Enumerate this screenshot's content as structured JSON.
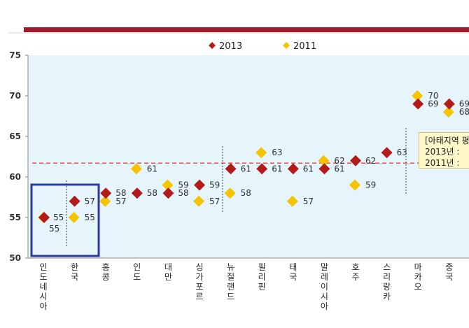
{
  "chart_data": {
    "type": "scatter",
    "categories": [
      "인도네시아",
      "한국",
      "홍콩",
      "인도",
      "대만",
      "싱가포르",
      "뉴질랜드",
      "필리핀",
      "태국",
      "말레이시아",
      "호주",
      "스리랑카",
      "마카오",
      "중국"
    ],
    "series": [
      {
        "name": "2013",
        "color": "#b31b1b",
        "marker": "diamond",
        "values": [
          55,
          57,
          58,
          58,
          58,
          59,
          61,
          61,
          61,
          61,
          62,
          63,
          69,
          69
        ]
      },
      {
        "name": "2011",
        "color": "#f5c400",
        "marker": "diamond",
        "values": [
          55,
          55,
          57,
          61,
          59,
          57,
          58,
          63,
          57,
          62,
          59,
          null,
          70,
          68
        ]
      }
    ],
    "data_labels": {
      "2013": [
        "55",
        "57",
        "58",
        "58",
        "58",
        "59",
        "61",
        "61",
        "61",
        "61",
        "62",
        "63",
        "69",
        "69"
      ],
      "2011": [
        "55",
        "55",
        "57",
        "61",
        "59",
        "57",
        "58",
        "63",
        "57",
        "62",
        "59",
        "",
        "70",
        "68"
      ]
    },
    "y_ticks": [
      "50",
      "55",
      "60",
      "65",
      "70",
      "75"
    ],
    "ylim": [
      50,
      75
    ],
    "average_line_2013": 61.7,
    "legend": [
      "2013",
      "2011"
    ],
    "legend_position": "top-center",
    "grid": false,
    "plot_background": "#e6f4fc",
    "callout": {
      "title": "[아태지역 평",
      "line1": "2013년 :",
      "line2": "2011년 :"
    }
  }
}
